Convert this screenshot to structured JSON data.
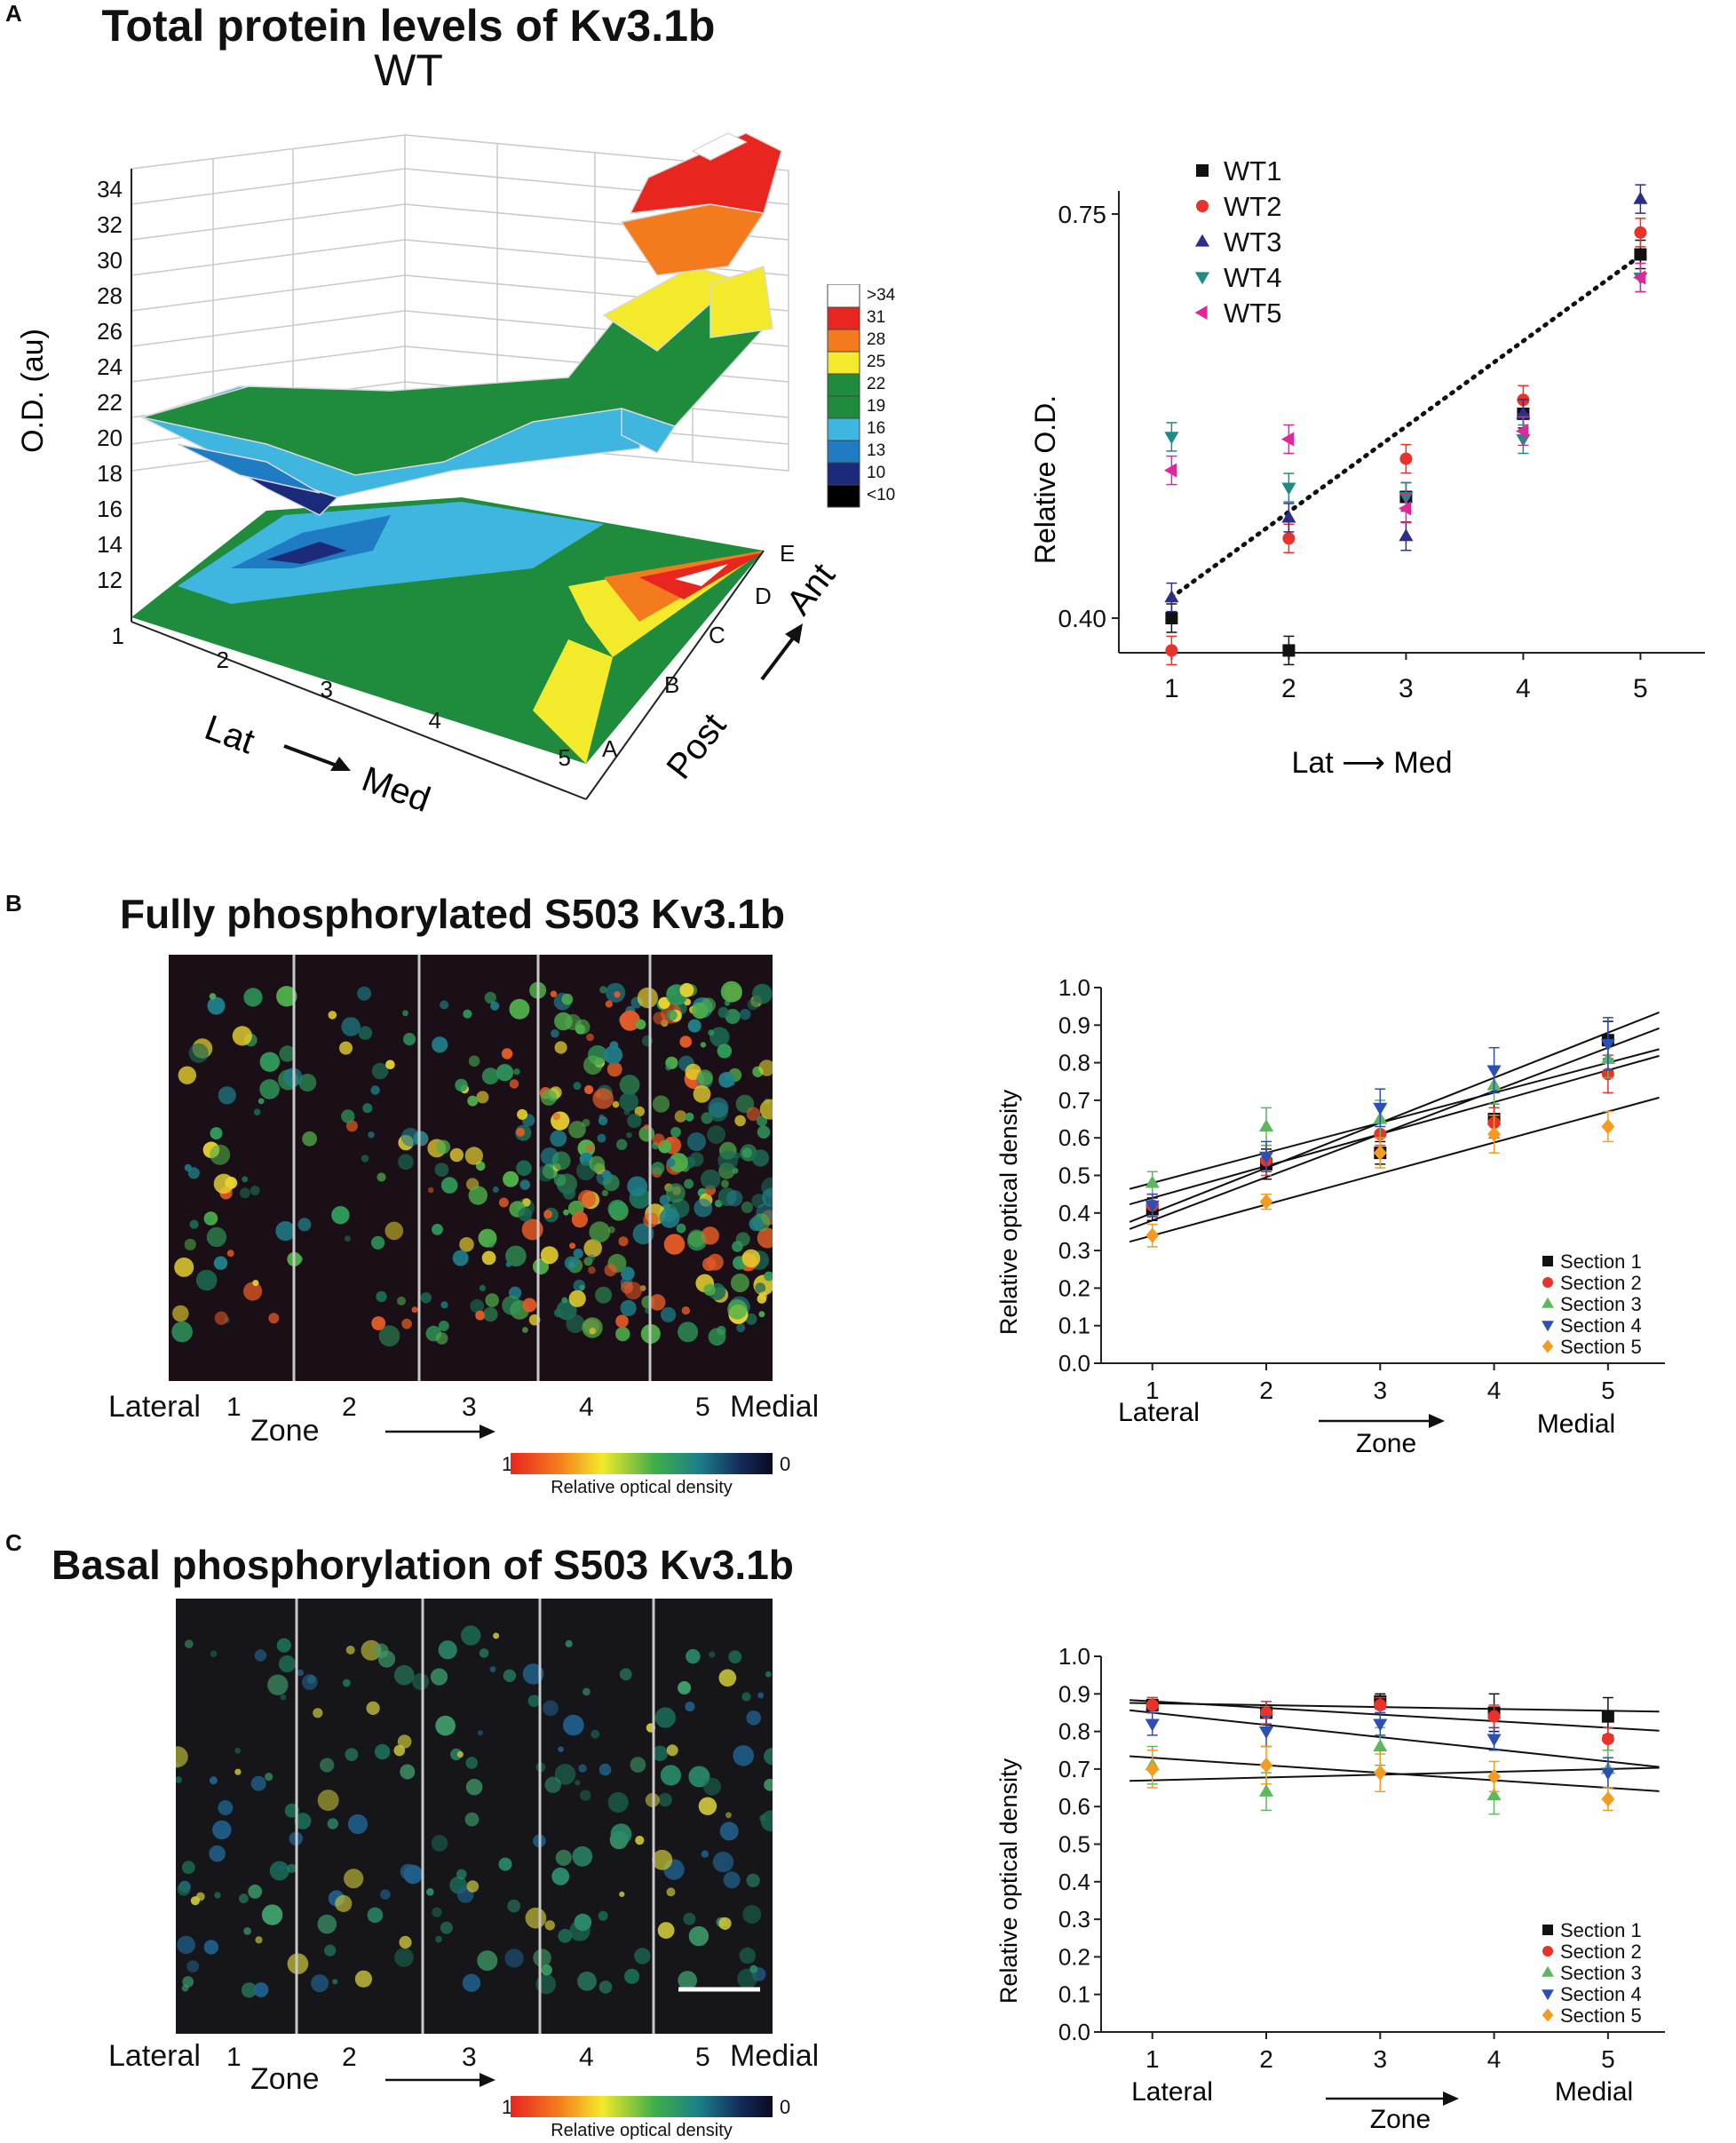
{
  "figure": {
    "panel_labels": [
      "A",
      "B",
      "C"
    ],
    "panel_a_title": "Total protein levels of Kv3.1b",
    "panel_a_subtitle": "WT",
    "panel_b_title": "Fully phosphorylated S503 Kv3.1b",
    "panel_c_title": "Basal phosphorylation of S503 Kv3.1b"
  },
  "colors": {
    "black": "#111111",
    "red": "#e8322a",
    "navy": "#2c2f8a",
    "teal": "#1f8a86",
    "magenta": "#e0269a",
    "green": "#5cb85c",
    "blue": "#2b4fb5",
    "orange": "#f39c1f",
    "map_red": "#e8261f",
    "map_orange": "#f47a1e",
    "map_yellow": "#f2ea2a",
    "map_green": "#1e8c3c",
    "map_cyan": "#3fb6e0",
    "map_blue": "#1f7bc2",
    "map_navy": "#1c2a7a",
    "map_black": "#000000"
  },
  "surface3d": {
    "zlabel": "O.D. (au)",
    "z_ticks": [
      "12",
      "14",
      "16",
      "18",
      "20",
      "22",
      "24",
      "26",
      "28",
      "30",
      "32",
      "34"
    ],
    "x_ticks": [
      "1",
      "2",
      "3",
      "4",
      "5"
    ],
    "y_ticks": [
      "A",
      "B",
      "C",
      "D",
      "E"
    ],
    "xlabel_start": "Lat",
    "xlabel_end": "Med",
    "ylabel_start": "Post",
    "ylabel_end": "Ant",
    "colorbar_labels": [
      ">34",
      "31",
      "28",
      "25",
      "22",
      "19",
      "16",
      "13",
      "10",
      "<10"
    ]
  },
  "scatter_legend": [
    "WT1",
    "WT2",
    "WT3",
    "WT4",
    "WT5"
  ],
  "zone_axis": {
    "lateral": "Lateral",
    "medial": "Medial",
    "zone": "Zone",
    "zone_numbers": [
      "1",
      "2",
      "3",
      "4",
      "5"
    ],
    "colorbar_hi": "1",
    "colorbar_lo": "0",
    "colorbar_label": "Relative optical density"
  },
  "chart_data": [
    {
      "type": "scatter",
      "panel": "A",
      "xlabel": "Lat ⟶ Med",
      "ylabel": "Relative O.D.",
      "x": [
        1,
        2,
        3,
        4,
        5
      ],
      "y_ticks": [
        "0.40",
        "0.75"
      ],
      "x_ticks": [
        "1",
        "2",
        "3",
        "4",
        "5"
      ],
      "ylim": [
        0.37,
        0.77
      ],
      "xlim": [
        0.55,
        5.55
      ],
      "series": [
        {
          "name": "WT1",
          "marker": "square",
          "color": "#111111",
          "values": [
            0.4,
            0.372,
            0.505,
            0.577,
            0.715
          ]
        },
        {
          "name": "WT2",
          "marker": "circle",
          "color": "#e8322a",
          "values": [
            0.372,
            0.469,
            0.538,
            0.589,
            0.734
          ]
        },
        {
          "name": "WT3",
          "marker": "triangle-up",
          "color": "#2c2f8a",
          "values": [
            0.418,
            0.487,
            0.471,
            0.577,
            0.763
          ]
        },
        {
          "name": "WT4",
          "marker": "triangle-down",
          "color": "#1f8a86",
          "values": [
            0.557,
            0.513,
            0.505,
            0.555,
            0.695
          ]
        },
        {
          "name": "WT5",
          "marker": "triangle-left",
          "color": "#e0269a",
          "values": [
            0.528,
            0.555,
            0.495,
            0.562,
            0.695
          ]
        }
      ],
      "fit_line": {
        "style": "dotted",
        "x": [
          1,
          5
        ],
        "y": [
          0.418,
          0.714
        ]
      }
    },
    {
      "type": "scatter",
      "panel": "B",
      "xlabel": "Zone",
      "ylabel": "Relative optical density",
      "x": [
        1,
        2,
        3,
        4,
        5
      ],
      "x_ticks": [
        "1",
        "2",
        "3",
        "4",
        "5"
      ],
      "y_ticks": [
        "0.0",
        "0.1",
        "0.2",
        "0.3",
        "0.4",
        "0.5",
        "0.6",
        "0.7",
        "0.8",
        "0.9",
        "1.0"
      ],
      "ylim": [
        0.0,
        1.0
      ],
      "xlim": [
        0.55,
        5.5
      ],
      "legend": "bottom-right",
      "series": [
        {
          "name": "Section 1",
          "marker": "square",
          "color": "#111111",
          "values": [
            0.41,
            0.53,
            0.56,
            0.65,
            0.86
          ],
          "errors": [
            0.03,
            0.04,
            0.03,
            0.04,
            0.05
          ],
          "fit": [
            0.38,
            0.84
          ]
        },
        {
          "name": "Section 2",
          "marker": "circle",
          "color": "#e8322a",
          "values": [
            0.42,
            0.54,
            0.61,
            0.64,
            0.77
          ],
          "errors": [
            0.03,
            0.04,
            0.03,
            0.04,
            0.05
          ],
          "fit": [
            0.44,
            0.78
          ]
        },
        {
          "name": "Section 3",
          "marker": "triangle-up",
          "color": "#5cb85c",
          "values": [
            0.48,
            0.63,
            0.65,
            0.74,
            0.81
          ],
          "errors": [
            0.03,
            0.05,
            0.05,
            0.05,
            0.05
          ],
          "fit": [
            0.48,
            0.8
          ]
        },
        {
          "name": "Section 4",
          "marker": "triangle-down",
          "color": "#2b4fb5",
          "values": [
            0.42,
            0.55,
            0.68,
            0.78,
            0.85
          ],
          "errors": [
            0.03,
            0.04,
            0.05,
            0.06,
            0.07
          ],
          "fit": [
            0.4,
            0.88
          ]
        },
        {
          "name": "Section 5",
          "marker": "diamond",
          "color": "#f39c1f",
          "values": [
            0.34,
            0.43,
            0.56,
            0.61,
            0.63
          ],
          "errors": [
            0.03,
            0.02,
            0.04,
            0.05,
            0.04
          ],
          "fit": [
            0.34,
            0.67
          ]
        }
      ]
    },
    {
      "type": "scatter",
      "panel": "C",
      "xlabel": "Zone",
      "ylabel": "Relative optical density",
      "x": [
        1,
        2,
        3,
        4,
        5
      ],
      "x_ticks": [
        "1",
        "2",
        "3",
        "4",
        "5"
      ],
      "y_ticks": [
        "0.0",
        "0.1",
        "0.2",
        "0.3",
        "0.4",
        "0.5",
        "0.6",
        "0.7",
        "0.8",
        "0.9",
        "1.0"
      ],
      "ylim": [
        0.0,
        1.0
      ],
      "xlim": [
        0.55,
        5.5
      ],
      "legend": "bottom-right",
      "series": [
        {
          "name": "Section 1",
          "marker": "square",
          "color": "#111111",
          "values": [
            0.87,
            0.85,
            0.88,
            0.85,
            0.84
          ],
          "errors": [
            0.02,
            0.03,
            0.02,
            0.05,
            0.05
          ],
          "fit": [
            0.875,
            0.855
          ]
        },
        {
          "name": "Section 2",
          "marker": "circle",
          "color": "#e8322a",
          "values": [
            0.87,
            0.85,
            0.87,
            0.84,
            0.78
          ],
          "errors": [
            0.02,
            0.03,
            0.02,
            0.03,
            0.03
          ],
          "fit": [
            0.88,
            0.81
          ]
        },
        {
          "name": "Section 3",
          "marker": "triangle-up",
          "color": "#5cb85c",
          "values": [
            0.71,
            0.64,
            0.76,
            0.63,
            0.7
          ],
          "errors": [
            0.05,
            0.05,
            0.05,
            0.05,
            0.05
          ],
          "fit": [
            0.73,
            0.65
          ]
        },
        {
          "name": "Section 4",
          "marker": "triangle-down",
          "color": "#2b4fb5",
          "values": [
            0.82,
            0.8,
            0.82,
            0.78,
            0.69
          ],
          "errors": [
            0.03,
            0.04,
            0.03,
            0.03,
            0.04
          ],
          "fit": [
            0.85,
            0.72
          ]
        },
        {
          "name": "Section 5",
          "marker": "diamond",
          "color": "#f39c1f",
          "values": [
            0.7,
            0.71,
            0.69,
            0.68,
            0.62
          ],
          "errors": [
            0.05,
            0.05,
            0.05,
            0.04,
            0.03
          ],
          "fit": [
            0.67,
            0.7
          ]
        }
      ]
    }
  ]
}
